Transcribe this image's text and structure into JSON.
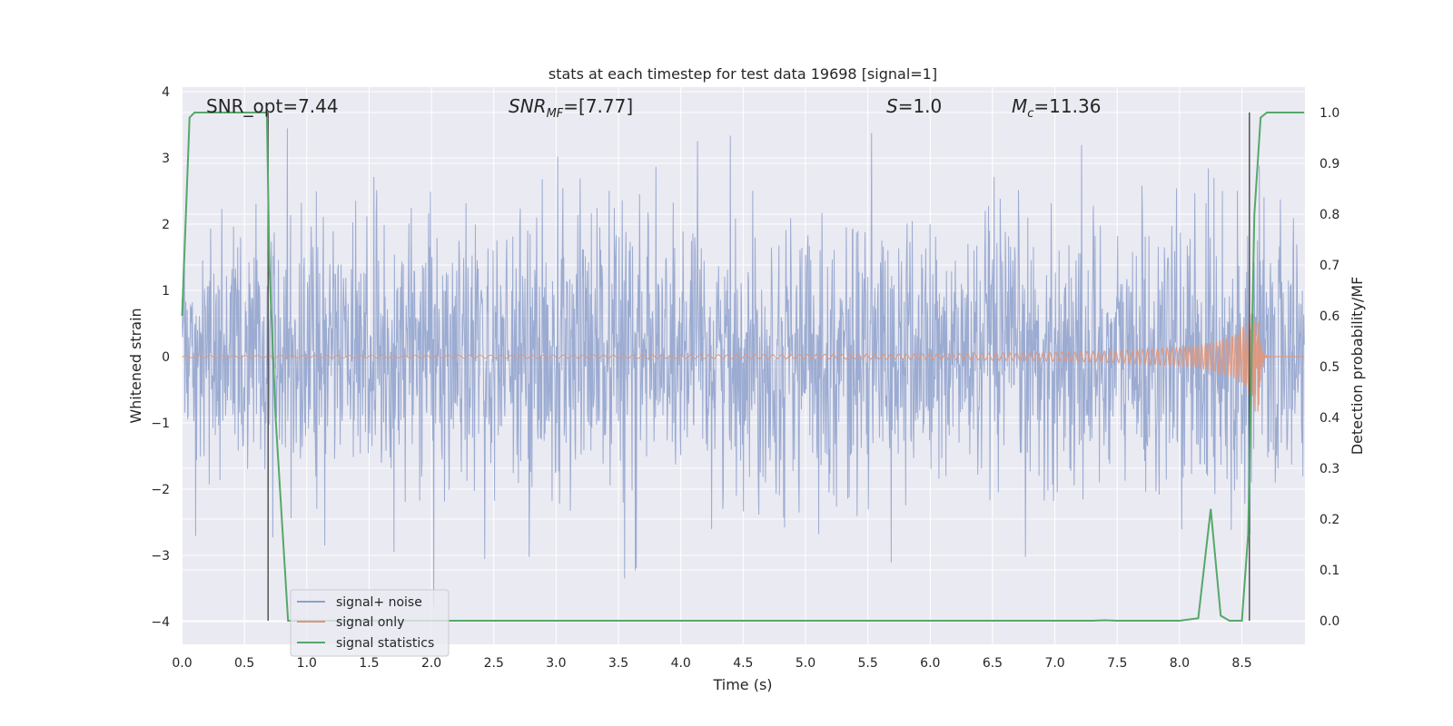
{
  "chart_data": {
    "type": "line",
    "title": "stats at each timestep for test data 19698 [signal=1]",
    "xlabel": "Time (s)",
    "ylabel": "Whitened strain",
    "y2label": "Detection probability/MF",
    "xlim": [
      0.0,
      9.0
    ],
    "ylim": [
      -4.4,
      4.05
    ],
    "y2lim": [
      -0.048,
      1.045
    ],
    "xticks": [
      "0.0",
      "0.5",
      "1.0",
      "1.5",
      "2.0",
      "2.5",
      "3.0",
      "3.5",
      "4.0",
      "4.5",
      "5.0",
      "5.5",
      "6.0",
      "6.5",
      "7.0",
      "7.5",
      "8.0",
      "8.5"
    ],
    "yticks": [
      "4",
      "3",
      "2",
      "1",
      "0",
      "−1",
      "−2",
      "−3",
      "−4"
    ],
    "y2ticks": [
      "1.0",
      "0.9",
      "0.8",
      "0.7",
      "0.6",
      "0.5",
      "0.4",
      "0.3",
      "0.2",
      "0.1",
      "0.0"
    ],
    "grid": true,
    "legend_position": "lower-left",
    "annotations": {
      "snr_opt": "SNR_opt=7.44",
      "snr_mf": "SNR",
      "snr_mf_sub": "MF",
      "snr_mf_value": "=[7.77]",
      "s_label": "S",
      "s_value": "=1.0",
      "mc_label": "M",
      "mc_sub": "c",
      "mc_value": "=11.36"
    },
    "vertical_markers": [
      0.69,
      8.56
    ],
    "series": [
      {
        "name": "signal+ noise",
        "color": "#8da0cb",
        "amplitude_std": 1.0,
        "duration": 9.0
      },
      {
        "name": "signal only",
        "color": "#e0967a",
        "chirp_peak_time": 8.63,
        "chirp_peak_amplitude": 1.05
      },
      {
        "name": "signal statistics",
        "color": "#55a868",
        "x": [
          0.0,
          0.06,
          0.1,
          0.2,
          0.3,
          0.4,
          0.5,
          0.6,
          0.68,
          0.7,
          0.75,
          0.8,
          0.85,
          1.0,
          2.0,
          3.0,
          4.0,
          5.0,
          6.0,
          7.0,
          7.3,
          7.4,
          7.5,
          8.0,
          8.15,
          8.25,
          8.33,
          8.4,
          8.5,
          8.55,
          8.6,
          8.65,
          8.7,
          8.8,
          9.0
        ],
        "values": [
          0.6,
          0.99,
          1.0,
          1.0,
          1.0,
          1.0,
          1.0,
          1.0,
          1.0,
          0.7,
          0.4,
          0.2,
          0.0,
          0.0,
          0.0,
          0.0,
          0.0,
          0.0,
          0.0,
          0.0,
          0.0,
          0.001,
          0.0,
          0.0,
          0.005,
          0.22,
          0.01,
          0.0,
          0.0,
          0.17,
          0.8,
          0.99,
          1.0,
          1.0,
          1.0
        ]
      }
    ]
  },
  "colors": {
    "plot_background": "#eaeaf2",
    "grid": "#ffffff",
    "marker_line": "#555555"
  }
}
